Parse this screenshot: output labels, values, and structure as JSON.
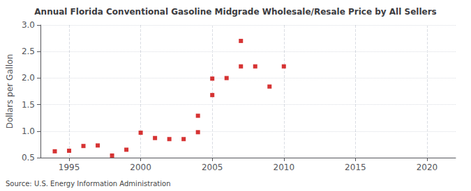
{
  "chart_data": {
    "type": "scatter",
    "title": "Annual Florida Conventional Gasoline Midgrade Wholesale/Resale Price by All Sellers",
    "ylabel": "Dollars per Gallon",
    "annotations": [
      "Source: U.S. Energy Information Administration"
    ],
    "x": [
      1994,
      1995,
      1996,
      1997,
      1998,
      1999,
      2000,
      2001,
      2002,
      2003,
      2004,
      2005,
      2006,
      2007,
      2008,
      2009,
      2010,
      2004,
      2005,
      2007
    ],
    "values": [
      0.62,
      0.63,
      0.72,
      0.73,
      0.54,
      0.65,
      0.97,
      0.87,
      0.85,
      0.85,
      0.98,
      1.68,
      2.0,
      2.7,
      2.22,
      1.84,
      2.22,
      1.29,
      1.99,
      2.22
    ],
    "color": "#cc0000",
    "marker": "square",
    "xlim": [
      1993,
      2022
    ],
    "ylim": [
      0.5,
      3.0
    ],
    "xticks": [
      1995,
      2000,
      2005,
      2010,
      2015,
      2020
    ],
    "yticks": [
      0.5,
      {
        "value": 1.0,
        "label": "1.0"
      },
      1.5,
      {
        "value": 2.0,
        "label": "2.0"
      },
      2.5,
      {
        "value": 3.0,
        "label": "3.0"
      }
    ],
    "grid": true
  }
}
